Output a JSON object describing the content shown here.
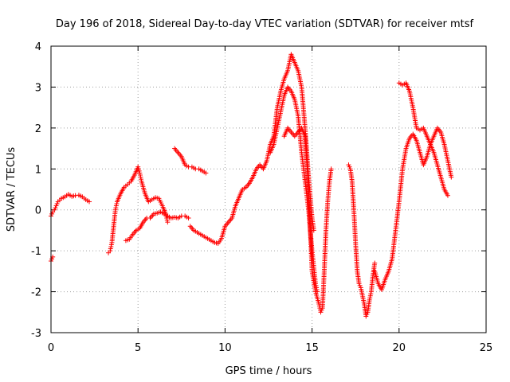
{
  "chart_data": {
    "type": "scatter",
    "title": "Day 196 of 2018, Sidereal Day-to-day VTEC variation (SDTVAR) for receiver mtsf",
    "xlabel": "GPS time / hours",
    "ylabel": "SDTVAR / TECUs",
    "xlim": [
      0,
      25
    ],
    "ylim": [
      -3,
      4
    ],
    "xticks": [
      0,
      5,
      10,
      15,
      20,
      25
    ],
    "yticks": [
      -3,
      -2,
      -1,
      0,
      1,
      2,
      3,
      4
    ],
    "grid": true,
    "marker": "+",
    "color": "#ff0000",
    "series": [
      {
        "name": "seg1",
        "points": [
          [
            0.0,
            -1.25
          ],
          [
            0.1,
            -1.15
          ]
        ]
      },
      {
        "name": "seg2",
        "points": [
          [
            0.0,
            -0.15
          ],
          [
            0.1,
            -0.05
          ],
          [
            0.2,
            0.0
          ],
          [
            0.3,
            0.1
          ],
          [
            0.4,
            0.2
          ],
          [
            0.6,
            0.28
          ],
          [
            0.8,
            0.32
          ],
          [
            1.0,
            0.38
          ],
          [
            1.2,
            0.33
          ],
          [
            1.4,
            0.35
          ],
          [
            1.6,
            0.36
          ],
          [
            1.8,
            0.32
          ],
          [
            2.0,
            0.25
          ],
          [
            2.2,
            0.2
          ]
        ]
      },
      {
        "name": "seg3",
        "points": [
          [
            3.3,
            -1.05
          ],
          [
            3.4,
            -1.0
          ],
          [
            3.5,
            -0.8
          ],
          [
            3.6,
            -0.4
          ],
          [
            3.7,
            0.0
          ],
          [
            3.8,
            0.2
          ],
          [
            4.0,
            0.4
          ],
          [
            4.2,
            0.55
          ],
          [
            4.4,
            0.62
          ],
          [
            4.6,
            0.7
          ],
          [
            4.8,
            0.85
          ],
          [
            5.0,
            1.05
          ],
          [
            5.1,
            0.9
          ],
          [
            5.2,
            0.7
          ],
          [
            5.4,
            0.4
          ],
          [
            5.6,
            0.2
          ],
          [
            5.8,
            0.25
          ],
          [
            6.0,
            0.3
          ],
          [
            6.2,
            0.28
          ],
          [
            6.4,
            0.1
          ],
          [
            6.6,
            -0.1
          ],
          [
            6.7,
            -0.3
          ]
        ]
      },
      {
        "name": "seg4",
        "points": [
          [
            4.3,
            -0.75
          ],
          [
            4.5,
            -0.72
          ],
          [
            4.7,
            -0.6
          ],
          [
            4.9,
            -0.5
          ],
          [
            5.1,
            -0.45
          ],
          [
            5.3,
            -0.3
          ],
          [
            5.5,
            -0.2
          ],
          [
            5.7,
            -0.2
          ],
          [
            5.9,
            -0.1
          ],
          [
            6.1,
            -0.08
          ],
          [
            6.3,
            -0.05
          ],
          [
            6.5,
            -0.1
          ],
          [
            6.7,
            -0.15
          ],
          [
            6.9,
            -0.2
          ],
          [
            7.1,
            -0.18
          ],
          [
            7.3,
            -0.2
          ],
          [
            7.5,
            -0.15
          ],
          [
            7.7,
            -0.15
          ],
          [
            7.9,
            -0.2
          ]
        ]
      },
      {
        "name": "seg5",
        "points": [
          [
            7.1,
            1.5
          ],
          [
            7.3,
            1.4
          ],
          [
            7.5,
            1.3
          ],
          [
            7.7,
            1.1
          ],
          [
            7.9,
            1.05
          ],
          [
            8.1,
            1.05
          ],
          [
            8.3,
            1.0
          ],
          [
            8.5,
            1.0
          ],
          [
            8.7,
            0.95
          ],
          [
            8.9,
            0.9
          ]
        ]
      },
      {
        "name": "seg6",
        "points": [
          [
            8.0,
            -0.4
          ],
          [
            8.2,
            -0.5
          ],
          [
            8.4,
            -0.55
          ],
          [
            8.6,
            -0.6
          ],
          [
            8.8,
            -0.65
          ],
          [
            9.0,
            -0.7
          ],
          [
            9.2,
            -0.75
          ],
          [
            9.4,
            -0.8
          ],
          [
            9.6,
            -0.82
          ],
          [
            9.8,
            -0.7
          ],
          [
            10.0,
            -0.4
          ],
          [
            10.2,
            -0.3
          ],
          [
            10.4,
            -0.2
          ],
          [
            10.6,
            0.1
          ],
          [
            10.8,
            0.3
          ],
          [
            11.0,
            0.5
          ],
          [
            11.2,
            0.55
          ],
          [
            11.4,
            0.65
          ],
          [
            11.6,
            0.8
          ],
          [
            11.8,
            1.0
          ],
          [
            12.0,
            1.1
          ],
          [
            12.2,
            1.0
          ],
          [
            12.4,
            1.2
          ],
          [
            12.6,
            1.6
          ],
          [
            12.8,
            1.8
          ],
          [
            13.0,
            2.5
          ],
          [
            13.2,
            2.9
          ],
          [
            13.4,
            3.2
          ],
          [
            13.6,
            3.4
          ],
          [
            13.8,
            3.8
          ],
          [
            14.0,
            3.6
          ],
          [
            14.2,
            3.4
          ],
          [
            14.4,
            3.0
          ],
          [
            14.6,
            2.0
          ],
          [
            14.8,
            0.8
          ],
          [
            15.0,
            -0.2
          ],
          [
            15.1,
            -0.5
          ]
        ]
      },
      {
        "name": "seg7",
        "points": [
          [
            12.6,
            1.4
          ],
          [
            12.8,
            1.6
          ],
          [
            13.0,
            2.0
          ],
          [
            13.2,
            2.4
          ],
          [
            13.4,
            2.8
          ],
          [
            13.6,
            3.0
          ],
          [
            13.8,
            2.9
          ],
          [
            14.0,
            2.7
          ],
          [
            14.2,
            2.3
          ],
          [
            14.4,
            1.4
          ],
          [
            14.6,
            0.7
          ],
          [
            14.8,
            0.0
          ],
          [
            15.0,
            -1.0
          ],
          [
            15.2,
            -1.8
          ],
          [
            15.3,
            -2.0
          ]
        ]
      },
      {
        "name": "seg8",
        "points": [
          [
            13.4,
            1.8
          ],
          [
            13.6,
            2.0
          ],
          [
            13.8,
            1.9
          ],
          [
            14.0,
            1.8
          ],
          [
            14.2,
            1.9
          ],
          [
            14.4,
            2.0
          ],
          [
            14.6,
            1.8
          ],
          [
            14.8,
            0.5
          ],
          [
            14.9,
            -0.5
          ],
          [
            15.0,
            -1.5
          ],
          [
            15.2,
            -2.0
          ],
          [
            15.4,
            -2.3
          ],
          [
            15.5,
            -2.5
          ],
          [
            15.6,
            -2.4
          ],
          [
            15.7,
            -1.5
          ],
          [
            15.8,
            -0.5
          ],
          [
            15.9,
            0.2
          ],
          [
            16.0,
            0.7
          ],
          [
            16.1,
            1.0
          ]
        ]
      },
      {
        "name": "seg9",
        "points": [
          [
            17.1,
            1.1
          ],
          [
            17.2,
            1.0
          ],
          [
            17.3,
            0.7
          ],
          [
            17.4,
            0.0
          ],
          [
            17.5,
            -0.8
          ],
          [
            17.6,
            -1.5
          ],
          [
            17.7,
            -1.8
          ],
          [
            17.8,
            -1.9
          ],
          [
            18.0,
            -2.3
          ],
          [
            18.1,
            -2.6
          ],
          [
            18.2,
            -2.5
          ],
          [
            18.3,
            -2.2
          ],
          [
            18.4,
            -2.0
          ],
          [
            18.5,
            -1.6
          ],
          [
            18.6,
            -1.3
          ]
        ]
      },
      {
        "name": "seg10",
        "points": [
          [
            18.6,
            -1.5
          ],
          [
            18.8,
            -1.8
          ],
          [
            19.0,
            -1.95
          ],
          [
            19.2,
            -1.7
          ],
          [
            19.4,
            -1.5
          ],
          [
            19.6,
            -1.2
          ],
          [
            19.8,
            -0.5
          ],
          [
            20.0,
            0.2
          ],
          [
            20.2,
            1.0
          ],
          [
            20.4,
            1.5
          ],
          [
            20.6,
            1.75
          ],
          [
            20.8,
            1.85
          ],
          [
            21.0,
            1.7
          ],
          [
            21.2,
            1.4
          ],
          [
            21.4,
            1.1
          ],
          [
            21.6,
            1.3
          ],
          [
            21.8,
            1.6
          ],
          [
            22.0,
            1.8
          ],
          [
            22.2,
            2.0
          ],
          [
            22.4,
            1.9
          ],
          [
            22.6,
            1.6
          ],
          [
            22.8,
            1.2
          ],
          [
            23.0,
            0.8
          ]
        ]
      },
      {
        "name": "seg11",
        "points": [
          [
            20.0,
            3.1
          ],
          [
            20.2,
            3.05
          ],
          [
            20.4,
            3.1
          ],
          [
            20.6,
            2.9
          ],
          [
            20.8,
            2.5
          ],
          [
            21.0,
            2.0
          ],
          [
            21.2,
            1.95
          ],
          [
            21.4,
            2.0
          ],
          [
            21.6,
            1.8
          ],
          [
            21.8,
            1.6
          ],
          [
            22.0,
            1.4
          ],
          [
            22.2,
            1.1
          ],
          [
            22.4,
            0.8
          ],
          [
            22.6,
            0.5
          ],
          [
            22.8,
            0.35
          ]
        ]
      }
    ]
  }
}
